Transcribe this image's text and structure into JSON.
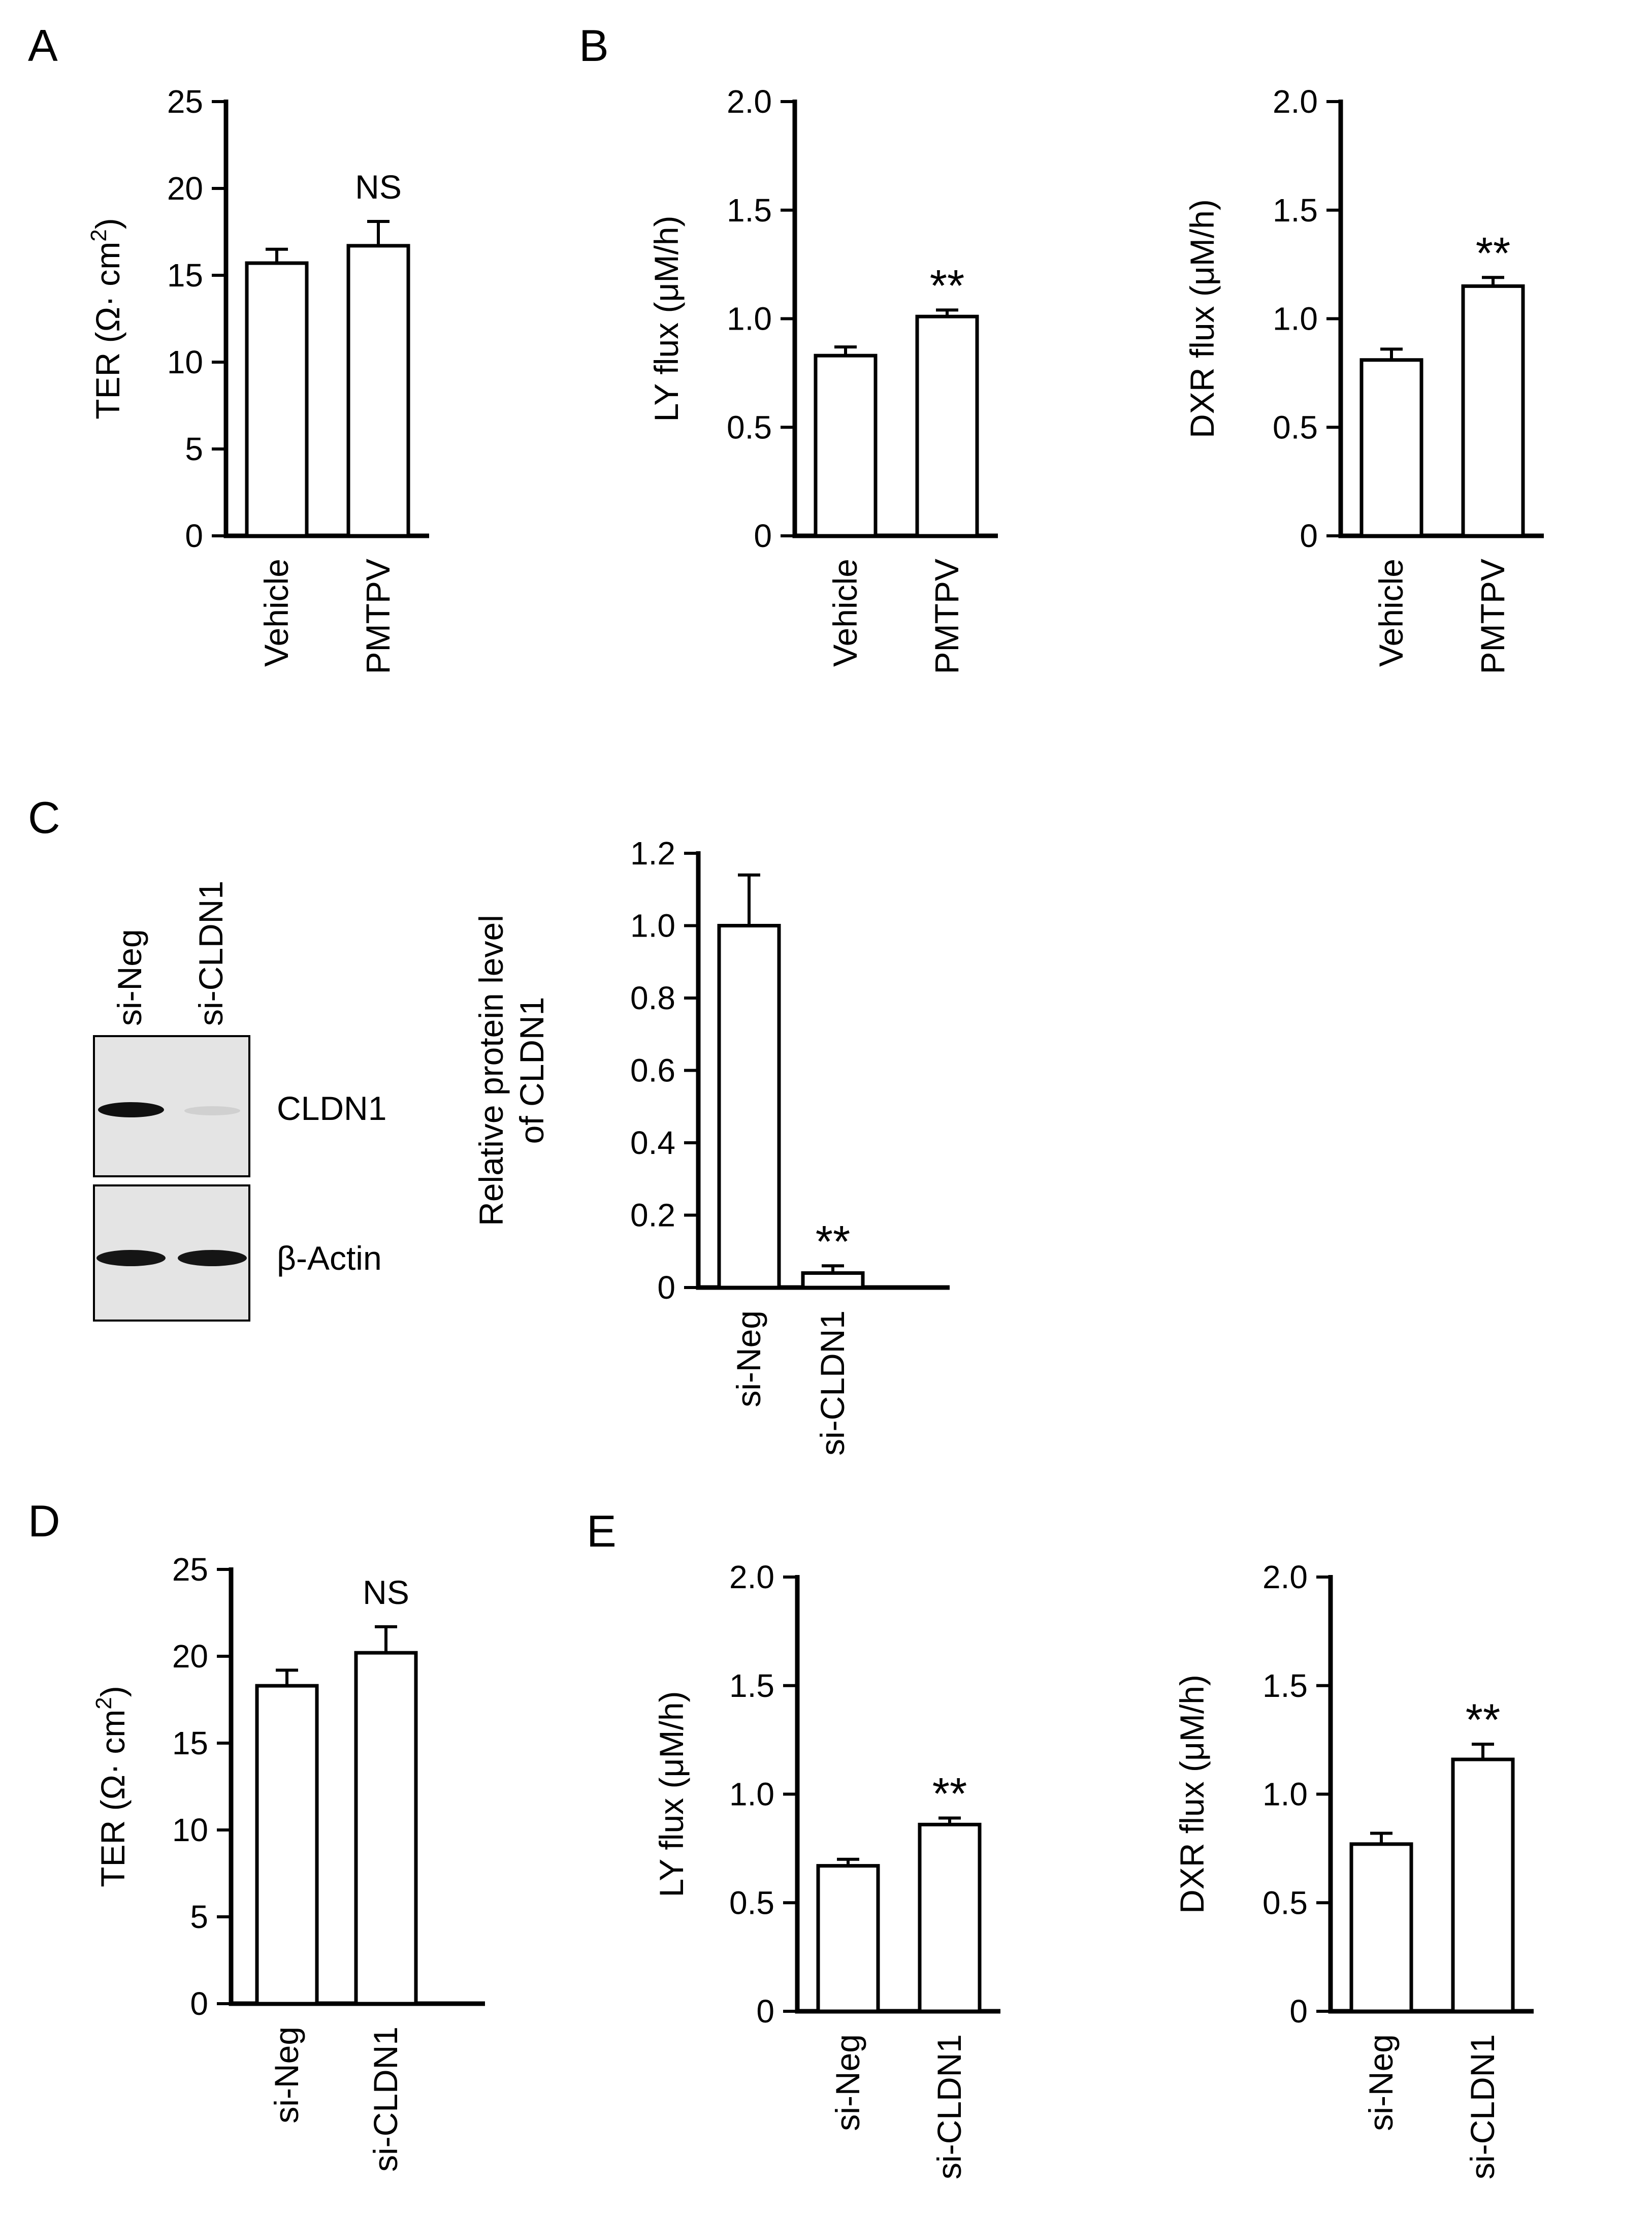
{
  "panels": {
    "A": "A",
    "B": "B",
    "C": "C",
    "D": "D",
    "E": "E"
  },
  "blot": {
    "lanes": [
      "si-Neg",
      "si-CLDN1"
    ],
    "labels": [
      "CLDN1",
      "β-Actin"
    ]
  },
  "chart_data": [
    {
      "id": "A",
      "type": "bar",
      "categories": [
        "Vehicle",
        "PMTPV"
      ],
      "values": [
        15.7,
        16.7
      ],
      "errors": [
        0.8,
        1.4
      ],
      "annotations": [
        "",
        "NS"
      ],
      "ylabel": "TER (Ω· cm²)",
      "ylabel_main": "TER",
      "ylabel_unit": "(Ω· cm",
      "ylabel_sup": "2",
      "ylabel_close": ")",
      "ylim": [
        0,
        25
      ],
      "yticks": [
        0,
        5,
        10,
        15,
        20,
        25
      ],
      "ytick_labels": [
        "0",
        "5",
        "10",
        "15",
        "20",
        "25"
      ]
    },
    {
      "id": "B1",
      "type": "bar",
      "categories": [
        "Vehicle",
        "PMTPV"
      ],
      "values": [
        0.83,
        1.01
      ],
      "errors": [
        0.04,
        0.03
      ],
      "annotations": [
        "",
        "**"
      ],
      "ylabel": "LY flux (μM/h)",
      "ylim": [
        0,
        2.0
      ],
      "yticks": [
        0,
        0.5,
        1.0,
        1.5,
        2.0
      ],
      "ytick_labels": [
        "0",
        "0.5",
        "1.0",
        "1.5",
        "2.0"
      ]
    },
    {
      "id": "B2",
      "type": "bar",
      "categories": [
        "Vehicle",
        "PMTPV"
      ],
      "values": [
        0.81,
        1.15
      ],
      "errors": [
        0.05,
        0.04
      ],
      "annotations": [
        "",
        "**"
      ],
      "ylabel": "DXR flux (μM/h)",
      "ylim": [
        0,
        2.0
      ],
      "yticks": [
        0,
        0.5,
        1.0,
        1.5,
        2.0
      ],
      "ytick_labels": [
        "0",
        "0.5",
        "1.0",
        "1.5",
        "2.0"
      ]
    },
    {
      "id": "C",
      "type": "bar",
      "categories": [
        "si-Neg",
        "si-CLDN1"
      ],
      "values": [
        1.0,
        0.04
      ],
      "errors": [
        0.14,
        0.02
      ],
      "annotations": [
        "",
        "**"
      ],
      "ylabel": "Relative protein level of CLDN1",
      "ylabel_line1": "Relative protein level",
      "ylabel_line2": "of CLDN1",
      "ylim": [
        0,
        1.2
      ],
      "yticks": [
        0,
        0.2,
        0.4,
        0.6,
        0.8,
        1.0,
        1.2
      ],
      "ytick_labels": [
        "0",
        "0.2",
        "0.4",
        "0.6",
        "0.8",
        "1.0",
        "1.2"
      ]
    },
    {
      "id": "D",
      "type": "bar",
      "categories": [
        "si-Neg",
        "si-CLDN1"
      ],
      "values": [
        18.3,
        20.2
      ],
      "errors": [
        0.9,
        1.5
      ],
      "annotations": [
        "",
        "NS"
      ],
      "ylabel": "TER (Ω· cm²)",
      "ylabel_main": "TER",
      "ylabel_unit": "(Ω· cm",
      "ylabel_sup": "2",
      "ylabel_close": ")",
      "ylim": [
        0,
        25
      ],
      "yticks": [
        0,
        5,
        10,
        15,
        20,
        25
      ],
      "ytick_labels": [
        "0",
        "5",
        "10",
        "15",
        "20",
        "25"
      ]
    },
    {
      "id": "E1",
      "type": "bar",
      "categories": [
        "si-Neg",
        "si-CLDN1"
      ],
      "values": [
        0.67,
        0.86
      ],
      "errors": [
        0.03,
        0.03
      ],
      "annotations": [
        "",
        "**"
      ],
      "ylabel": "LY flux (μM/h)",
      "ylim": [
        0,
        2.0
      ],
      "yticks": [
        0,
        0.5,
        1.0,
        1.5,
        2.0
      ],
      "ytick_labels": [
        "0",
        "0.5",
        "1.0",
        "1.5",
        "2.0"
      ]
    },
    {
      "id": "E2",
      "type": "bar",
      "categories": [
        "si-Neg",
        "si-CLDN1"
      ],
      "values": [
        0.77,
        1.16
      ],
      "errors": [
        0.05,
        0.07
      ],
      "annotations": [
        "",
        "**"
      ],
      "ylabel": "DXR flux (μM/h)",
      "ylim": [
        0,
        2.0
      ],
      "yticks": [
        0,
        0.5,
        1.0,
        1.5,
        2.0
      ],
      "ytick_labels": [
        "0",
        "0.5",
        "1.0",
        "1.5",
        "2.0"
      ]
    }
  ]
}
